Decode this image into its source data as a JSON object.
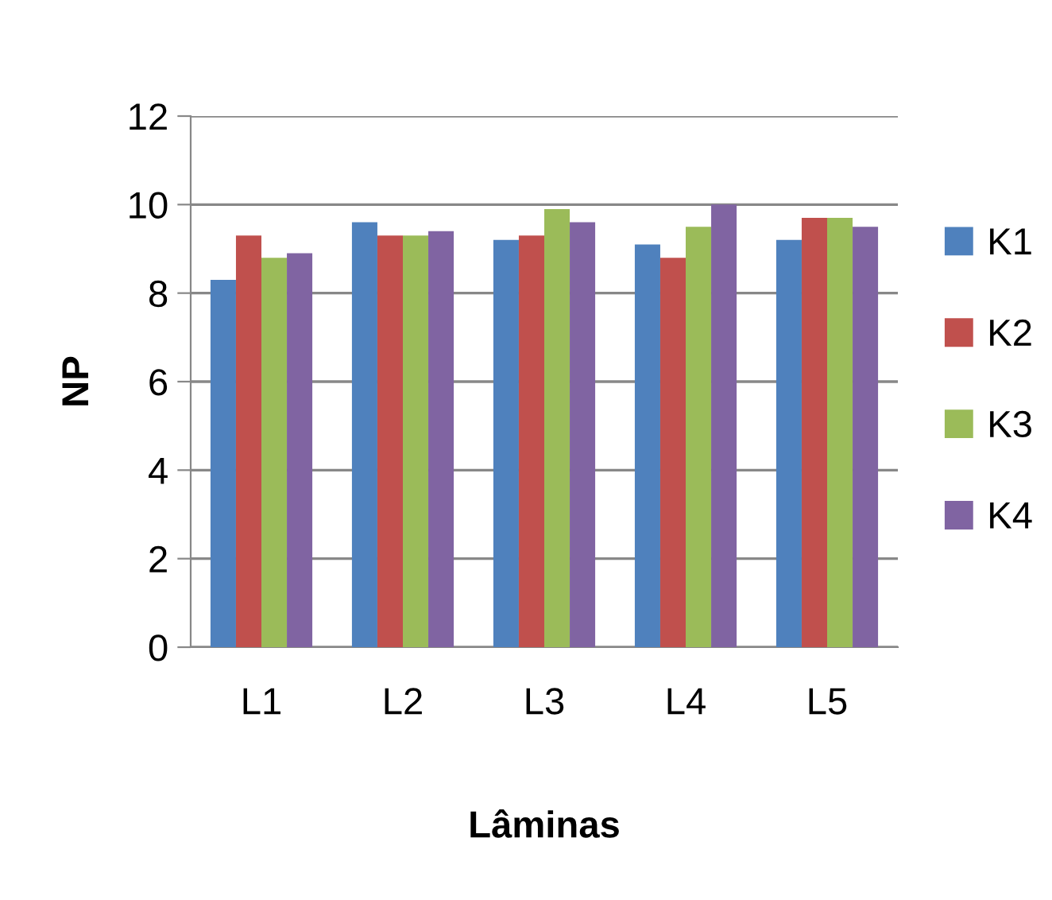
{
  "chart_data": {
    "type": "bar",
    "xlabel": "Lâminas",
    "ylabel": "NP",
    "categories": [
      "L1",
      "L2",
      "L3",
      "L4",
      "L5"
    ],
    "series": [
      {
        "name": "K1",
        "color": "#4f81bd",
        "values": [
          8.3,
          9.6,
          9.2,
          9.1,
          9.2
        ]
      },
      {
        "name": "K2",
        "color": "#c0504d",
        "values": [
          9.3,
          9.3,
          9.3,
          8.8,
          9.7
        ]
      },
      {
        "name": "K3",
        "color": "#9bbb59",
        "values": [
          8.8,
          9.3,
          9.9,
          9.5,
          9.7
        ]
      },
      {
        "name": "K4",
        "color": "#8064a2",
        "values": [
          8.9,
          9.4,
          9.6,
          10.0,
          9.5
        ]
      }
    ],
    "ylim": [
      0,
      12
    ],
    "yticks": [
      0,
      2,
      4,
      6,
      8,
      10,
      12
    ],
    "grid": "y",
    "legend": "right"
  }
}
